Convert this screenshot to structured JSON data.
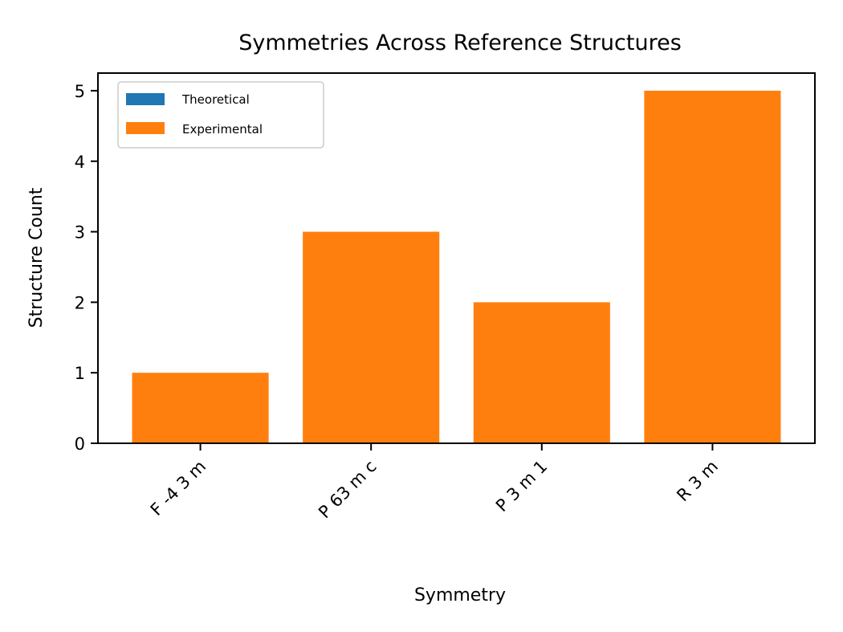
{
  "chart_data": {
    "type": "bar",
    "title": "Symmetries Across Reference Structures",
    "xlabel": "Symmetry",
    "ylabel": "Structure Count",
    "categories": [
      "F -4 3 m",
      "P 63 m c",
      "P 3 m 1",
      "R 3 m"
    ],
    "series": [
      {
        "name": "Theoretical",
        "values": [
          0,
          0,
          0,
          0
        ],
        "color": "#1f77b4"
      },
      {
        "name": "Experimental",
        "values": [
          1,
          3,
          2,
          5
        ],
        "color": "#ff7f0e"
      }
    ],
    "ylim": [
      0,
      5.25
    ],
    "yticks": [
      0,
      1,
      2,
      3,
      4,
      5
    ],
    "grid": false,
    "legend_position": "top-left",
    "stacked": true
  }
}
